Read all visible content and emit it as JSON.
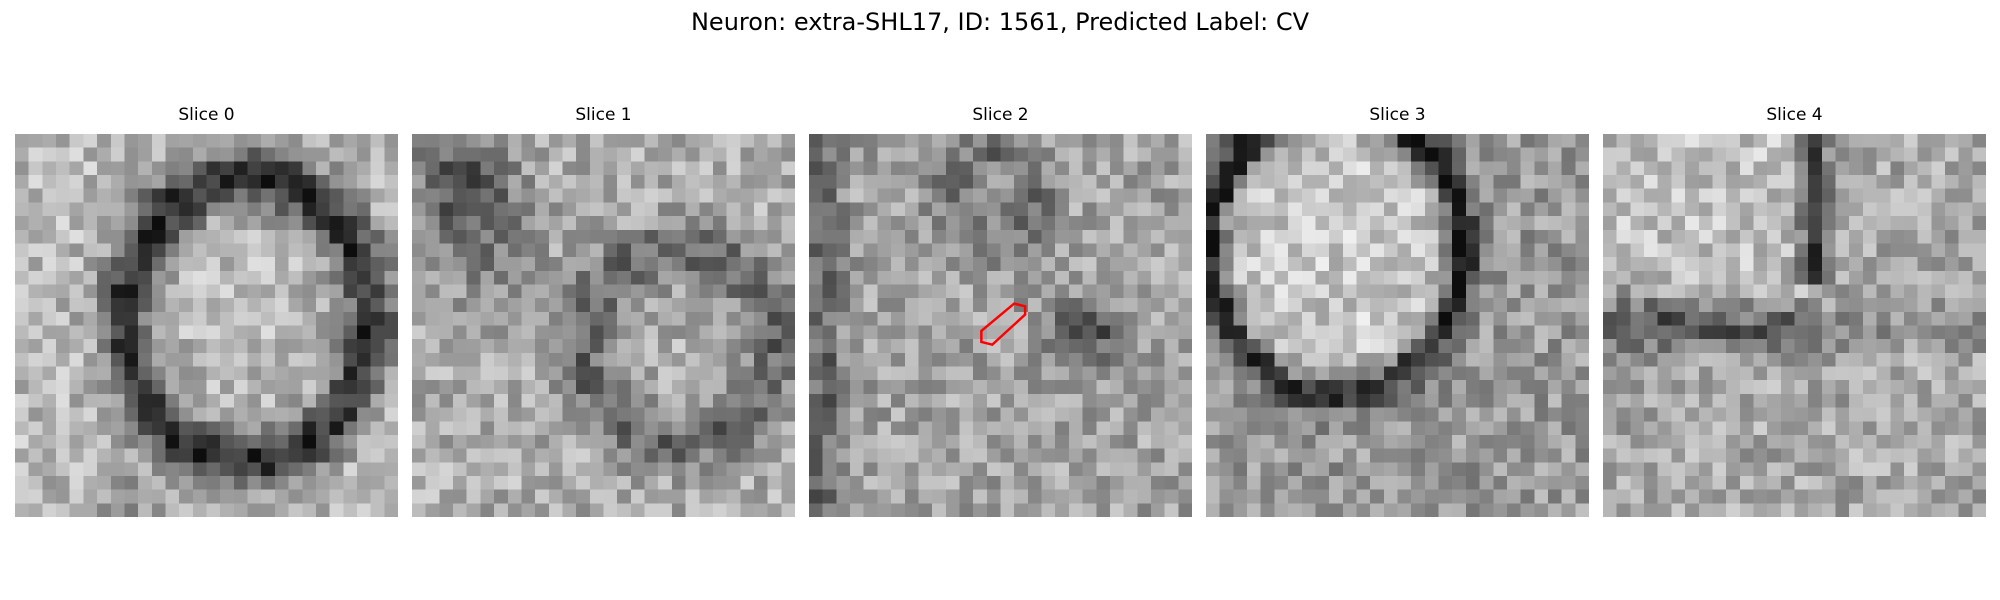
{
  "figure": {
    "title": "Neuron: extra-SHL17, ID: 1561, Predicted Label: CV"
  },
  "panels": [
    {
      "title": "Slice 0",
      "seed": 11,
      "pattern": "ring"
    },
    {
      "title": "Slice 1",
      "seed": 23,
      "pattern": "faint-ring"
    },
    {
      "title": "Slice 2",
      "seed": 37,
      "pattern": "noise-with-blob",
      "has_roi": true
    },
    {
      "title": "Slice 3",
      "seed": 53,
      "pattern": "arc-right"
    },
    {
      "title": "Slice 4",
      "seed": 71,
      "pattern": "arc-top"
    }
  ],
  "roi": {
    "panel": 2,
    "color": "#ff0000",
    "shape": "hexagon"
  },
  "colormap": "gray"
}
